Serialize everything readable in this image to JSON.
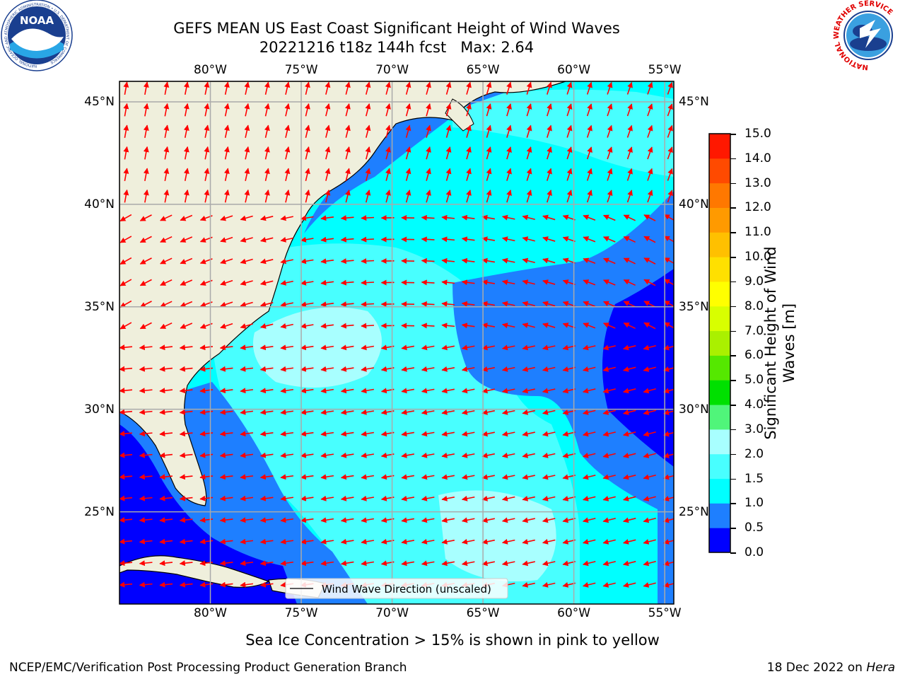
{
  "title_line1": "GEFS MEAN US East Coast Significant Height of Wind Waves",
  "title_line2": "20221216 t18z 144h fcst   Max: 2.64",
  "noaa_logo": {
    "text": "NOAA",
    "ring_text": "NATIONAL OCEANIC AND ATMOSPHERIC ADMINISTRATION • U.S. DEPARTMENT OF COMMERCE"
  },
  "nws_logo": {
    "ring_text": "NATIONAL WEATHER SERVICE"
  },
  "map": {
    "lon_range": [
      -85,
      -54.5
    ],
    "lat_range": [
      20.5,
      46
    ],
    "lon_ticks": [
      {
        "value": -80,
        "label": "80°W"
      },
      {
        "value": -75,
        "label": "75°W"
      },
      {
        "value": -70,
        "label": "70°W"
      },
      {
        "value": -65,
        "label": "65°W"
      },
      {
        "value": -60,
        "label": "60°W"
      },
      {
        "value": -55,
        "label": "55°W"
      }
    ],
    "lat_ticks": [
      {
        "value": 45,
        "label": "45°N"
      },
      {
        "value": 40,
        "label": "40°N"
      },
      {
        "value": 35,
        "label": "35°N"
      },
      {
        "value": 30,
        "label": "30°N"
      },
      {
        "value": 25,
        "label": "25°N"
      }
    ],
    "grid": true,
    "land_color": "#efefdc",
    "legend_text": "Wind Wave Direction (unscaled)",
    "arrow_color": "#ff0000"
  },
  "colorbar": {
    "title": "Significant Height of Wind Waves [m]",
    "title_line1": "Significant Height of Wind",
    "title_line2": "Waves [m]",
    "levels": [
      "0.0",
      "0.5",
      "1.0",
      "1.5",
      "2.0",
      "3.0",
      "4.0",
      "5.0",
      "6.0",
      "7.0",
      "8.0",
      "9.0",
      "10.0",
      "11.0",
      "12.0",
      "13.0",
      "14.0",
      "15.0"
    ],
    "colors": [
      "#0000ff",
      "#1e7fff",
      "#00ffff",
      "#48ffff",
      "#a8ffff",
      "#50f57a",
      "#00e000",
      "#55e800",
      "#aaf000",
      "#d8ff00",
      "#ffff00",
      "#ffe000",
      "#ffc000",
      "#ff9a00",
      "#ff7800",
      "#ff4a00",
      "#ff1800"
    ]
  },
  "footer_note": "Sea Ice Concentration > 15% is shown in pink to yellow",
  "footer_left": "NCEP/EMC/Verification Post Processing Product Generation Branch",
  "footer_right_date": "18 Dec 2022 on ",
  "footer_right_host": "Hera"
}
